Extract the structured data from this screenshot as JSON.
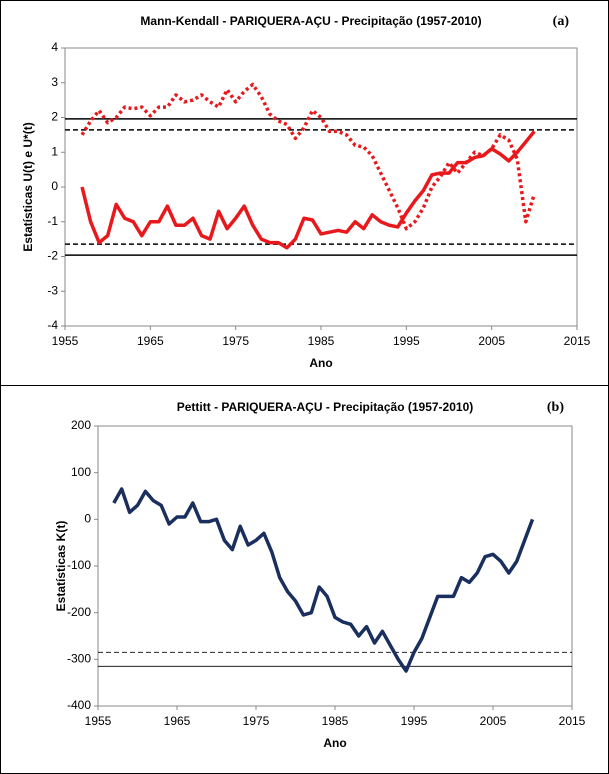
{
  "chart_data": [
    {
      "type": "line",
      "title": "Mann-Kendall - PARIQUERA-AÇU - Precipitação (1957-2010)",
      "panel_label": "(a)",
      "xlabel": "Ano",
      "ylabel": "Estatísticas U(t) e U*(t)",
      "x": [
        1957,
        1958,
        1959,
        1960,
        1961,
        1962,
        1963,
        1964,
        1965,
        1966,
        1967,
        1968,
        1969,
        1970,
        1971,
        1972,
        1973,
        1974,
        1975,
        1976,
        1977,
        1978,
        1979,
        1980,
        1981,
        1982,
        1983,
        1984,
        1985,
        1986,
        1987,
        1988,
        1989,
        1990,
        1991,
        1992,
        1993,
        1994,
        1995,
        1996,
        1997,
        1998,
        1999,
        2000,
        2001,
        2002,
        2003,
        2004,
        2005,
        2006,
        2007,
        2008,
        2009,
        2010
      ],
      "series": [
        {
          "color": "#e8191c",
          "style": "solid",
          "values": [
            0.0,
            -1.0,
            -1.6,
            -1.4,
            -0.5,
            -0.9,
            -1.0,
            -1.4,
            -1.0,
            -1.0,
            -0.55,
            -1.1,
            -1.1,
            -0.9,
            -1.4,
            -1.5,
            -0.7,
            -1.2,
            -0.9,
            -0.55,
            -1.1,
            -1.5,
            -1.6,
            -1.6,
            -1.75,
            -1.5,
            -0.9,
            -0.95,
            -1.35,
            -1.3,
            -1.25,
            -1.3,
            -1.0,
            -1.2,
            -0.8,
            -1.0,
            -1.1,
            -1.15,
            -0.75,
            -0.4,
            -0.1,
            0.35,
            0.4,
            0.4,
            0.7,
            0.7,
            0.85,
            0.9,
            1.1,
            0.95,
            0.75,
            1.0,
            1.3,
            1.6
          ]
        },
        {
          "color": "#e8191c",
          "style": "dotted",
          "values": [
            1.5,
            1.9,
            2.2,
            1.85,
            2.0,
            2.3,
            2.25,
            2.3,
            2.05,
            2.3,
            2.3,
            2.65,
            2.45,
            2.5,
            2.65,
            2.45,
            2.3,
            2.8,
            2.45,
            2.75,
            2.95,
            2.6,
            2.1,
            1.9,
            1.8,
            1.4,
            1.7,
            2.2,
            2.0,
            1.6,
            1.6,
            1.5,
            1.2,
            1.15,
            0.9,
            0.4,
            -0.1,
            -0.6,
            -1.2,
            -1.0,
            -0.6,
            0.0,
            0.3,
            0.7,
            0.4,
            0.7,
            1.0,
            0.9,
            1.1,
            1.5,
            1.35,
            0.8,
            -1.0,
            -0.2
          ]
        }
      ],
      "hlines": [
        {
          "value": 1.96,
          "style": "solid"
        },
        {
          "value": 1.645,
          "style": "dashed"
        },
        {
          "value": -1.645,
          "style": "dashed"
        },
        {
          "value": -1.96,
          "style": "solid"
        }
      ],
      "xlim": [
        1955,
        2015
      ],
      "xticks": [
        1955,
        1965,
        1975,
        1985,
        1995,
        2005,
        2015
      ],
      "ylim": [
        -4,
        4
      ],
      "yticks": [
        -4,
        -3,
        -2,
        -1,
        0,
        1,
        2,
        3,
        4
      ]
    },
    {
      "type": "line",
      "title": "Pettitt - PARIQUERA-AÇU - Precipitação (1957-2010)",
      "panel_label": "(b)",
      "xlabel": "Ano",
      "ylabel": "Estatísticas K(t)",
      "x": [
        1957,
        1958,
        1959,
        1960,
        1961,
        1962,
        1963,
        1964,
        1965,
        1966,
        1967,
        1968,
        1969,
        1970,
        1971,
        1972,
        1973,
        1974,
        1975,
        1976,
        1977,
        1978,
        1979,
        1980,
        1981,
        1982,
        1983,
        1984,
        1985,
        1986,
        1987,
        1988,
        1989,
        1990,
        1991,
        1992,
        1993,
        1994,
        1995,
        1996,
        1997,
        1998,
        1999,
        2000,
        2001,
        2002,
        2003,
        2004,
        2005,
        2006,
        2007,
        2008,
        2009,
        2010
      ],
      "series": [
        {
          "color": "#1a2f5e",
          "style": "solid",
          "values": [
            35,
            65,
            15,
            30,
            60,
            40,
            30,
            -10,
            5,
            5,
            35,
            -5,
            -5,
            0,
            -45,
            -65,
            -15,
            -55,
            -45,
            -30,
            -70,
            -125,
            -155,
            -175,
            -205,
            -200,
            -145,
            -165,
            -210,
            -220,
            -225,
            -250,
            -230,
            -265,
            -240,
            -270,
            -300,
            -325,
            -285,
            -255,
            -210,
            -165,
            -165,
            -165,
            -125,
            -135,
            -115,
            -80,
            -75,
            -90,
            -115,
            -90,
            -45,
            0
          ]
        }
      ],
      "hlines": [
        {
          "value": -285,
          "style": "dashed"
        },
        {
          "value": -315,
          "style": "solid"
        }
      ],
      "xlim": [
        1955,
        2015
      ],
      "xticks": [
        1955,
        1965,
        1975,
        1985,
        1995,
        2005,
        2015
      ],
      "ylim": [
        -400,
        200
      ],
      "yticks": [
        -400,
        -300,
        -200,
        -100,
        0,
        100,
        200
      ]
    }
  ]
}
